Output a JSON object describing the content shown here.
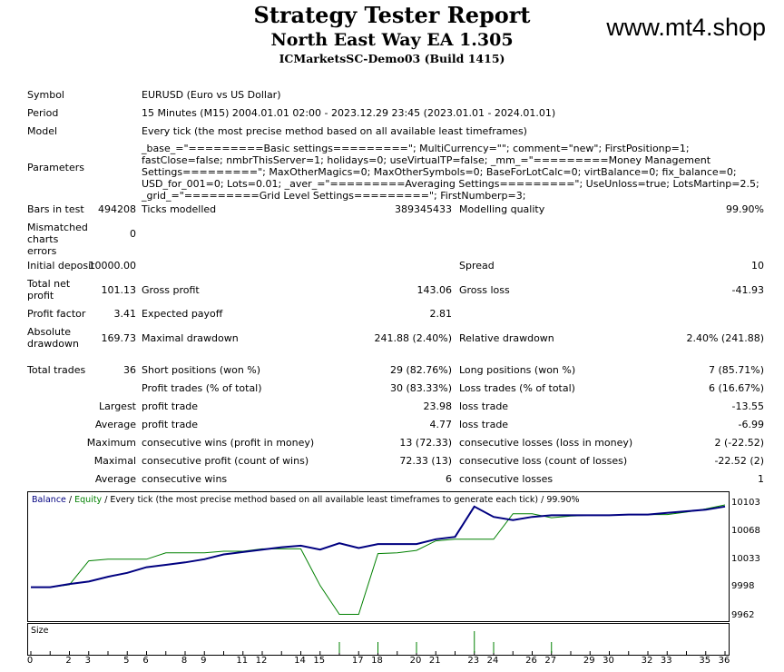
{
  "header": {
    "title": "Strategy Tester Report",
    "ea_name": "North East Way EA 1.305",
    "server_build": "ICMarketsSC-Demo03 (Build 1415)",
    "watermark": "www.mt4.shop"
  },
  "report": {
    "symbol_label": "Symbol",
    "symbol_value": "EURUSD (Euro vs US Dollar)",
    "period_label": "Period",
    "period_value": "15 Minutes (M15) 2004.01.01 02:00 - 2023.12.29 23:45 (2023.01.01 - 2024.01.01)",
    "model_label": "Model",
    "model_value": "Every tick (the most precise method based on all available least timeframes)",
    "parameters_label": "Parameters",
    "parameters_value": "_base_=\"=========Basic settings=========\"; MultiCurrency=\"\"; comment=\"new\"; FirstPositionp=1; fastClose=false; nmbrThisServer=1; holidays=0; useVirtualTP=false; _mm_=\"=========Money Management Settings=========\"; MaxOtherMagics=0; MaxOtherSymbols=0; BaseForLotCalc=0; virtBalance=0; fix_balance=0; USD_for_001=0; Lots=0.01; _aver_=\"=========Averaging Settings=========\"; UseUnloss=true; LotsMartinp=2.5; _grid_=\"=========Grid Level Settings=========\"; FirstNumberp=3;",
    "bars_label": "Bars in test",
    "bars_value": "494208",
    "ticks_label": "Ticks modelled",
    "ticks_value": "389345433",
    "quality_label": "Modelling quality",
    "quality_value": "99.90%",
    "mismatched_label": "Mismatched charts errors",
    "mismatched_value": "0",
    "deposit_label": "Initial deposit",
    "deposit_value": "10000.00",
    "spread_label": "Spread",
    "spread_value": "10",
    "net_profit_label": "Total net profit",
    "net_profit_value": "101.13",
    "gross_profit_label": "Gross profit",
    "gross_profit_value": "143.06",
    "gross_loss_label": "Gross loss",
    "gross_loss_value": "-41.93",
    "profit_factor_label": "Profit factor",
    "profit_factor_value": "3.41",
    "expected_payoff_label": "Expected payoff",
    "expected_payoff_value": "2.81",
    "abs_drawdown_label": "Absolute drawdown",
    "abs_drawdown_value": "169.73",
    "max_drawdown_label": "Maximal drawdown",
    "max_drawdown_value": "241.88 (2.40%)",
    "rel_drawdown_label": "Relative drawdown",
    "rel_drawdown_value": "2.40% (241.88)",
    "total_trades_label": "Total trades",
    "total_trades_value": "36",
    "short_label": "Short positions (won %)",
    "short_value": "29 (82.76%)",
    "long_label": "Long positions (won %)",
    "long_value": "7 (85.71%)",
    "profit_trades_label": "Profit trades (% of total)",
    "profit_trades_value": "30 (83.33%)",
    "loss_trades_label": "Loss trades (% of total)",
    "loss_trades_value": "6 (16.67%)",
    "largest_label": "Largest",
    "largest_profit_label": "profit trade",
    "largest_profit_value": "23.98",
    "largest_loss_label": "loss trade",
    "largest_loss_value": "-13.55",
    "average_label": "Average",
    "average_profit_label": "profit trade",
    "average_profit_value": "4.77",
    "average_loss_label": "loss trade",
    "average_loss_value": "-6.99",
    "maximum_label": "Maximum",
    "max_cons_wins_label": "consecutive wins (profit in money)",
    "max_cons_wins_value": "13 (72.33)",
    "max_cons_losses_label": "consecutive losses (loss in money)",
    "max_cons_losses_value": "2 (-22.52)",
    "maximal_label": "Maximal",
    "maximal_profit_label": "consecutive profit (count of wins)",
    "maximal_profit_value": "72.33 (13)",
    "maximal_loss_label": "consecutive loss (count of losses)",
    "maximal_loss_value": "-22.52 (2)",
    "average2_label": "Average",
    "avg_cons_wins_label": "consecutive wins",
    "avg_cons_wins_value": "6",
    "avg_cons_losses_label": "consecutive losses",
    "avg_cons_losses_value": "1"
  },
  "chart_caption": {
    "balance": "Balance",
    "sep": " / ",
    "equity": "Equity",
    "rest": " / Every tick (the most precise method based on all available least timeframes to generate each tick) / 99.90%"
  },
  "size_label": "Size",
  "colors": {
    "balance": "#000080",
    "equity": "#008000",
    "size_bars": "#008000"
  },
  "chart_data": {
    "type": "line",
    "x_ticks": [
      0,
      2,
      3,
      5,
      6,
      8,
      9,
      11,
      12,
      14,
      15,
      17,
      18,
      20,
      21,
      23,
      24,
      26,
      27,
      29,
      30,
      32,
      33,
      35,
      36
    ],
    "ylim": [
      9962,
      10103
    ],
    "y_ticks": [
      10103,
      10068,
      10033,
      9998,
      9962
    ],
    "series": [
      {
        "name": "Balance",
        "x": [
          0,
          1,
          2,
          3,
          4,
          5,
          6,
          7,
          8,
          9,
          10,
          11,
          12,
          13,
          14,
          15,
          16,
          17,
          18,
          19,
          20,
          21,
          22,
          23,
          24,
          25,
          26,
          27,
          28,
          29,
          30,
          31,
          32,
          33,
          34,
          35,
          36
        ],
        "values": [
          10000,
          10000,
          10004,
          10007,
          10013,
          10018,
          10025,
          10028,
          10031,
          10035,
          10041,
          10044,
          10047,
          10050,
          10052,
          10047,
          10055,
          10049,
          10054,
          10054,
          10054,
          10060,
          10063,
          10101,
          10088,
          10084,
          10088,
          10090,
          10090,
          10090,
          10090,
          10091,
          10091,
          10093,
          10095,
          10097,
          10101
        ]
      },
      {
        "name": "Equity",
        "x": [
          0,
          1,
          2,
          3,
          4,
          5,
          6,
          7,
          8,
          9,
          10,
          11,
          12,
          13,
          14,
          15,
          16,
          17,
          18,
          19,
          20,
          21,
          22,
          23,
          24,
          25,
          26,
          27,
          28,
          29,
          30,
          31,
          32,
          33,
          34,
          35,
          36
        ],
        "values": [
          10000,
          10000,
          10003,
          10033,
          10035,
          10035,
          10035,
          10043,
          10043,
          10043,
          10045,
          10045,
          10048,
          10048,
          10048,
          10002,
          9966,
          9966,
          10042,
          10043,
          10046,
          10058,
          10060,
          10060,
          10060,
          10092,
          10092,
          10087,
          10089,
          10090,
          10090,
          10091,
          10091,
          10091,
          10094,
          10098,
          10103
        ]
      }
    ],
    "size_bars": [
      {
        "x": 16,
        "h": 0.4
      },
      {
        "x": 18,
        "h": 0.4
      },
      {
        "x": 20,
        "h": 0.4
      },
      {
        "x": 23,
        "h": 0.8
      },
      {
        "x": 24,
        "h": 0.4
      },
      {
        "x": 27,
        "h": 0.4
      }
    ]
  }
}
